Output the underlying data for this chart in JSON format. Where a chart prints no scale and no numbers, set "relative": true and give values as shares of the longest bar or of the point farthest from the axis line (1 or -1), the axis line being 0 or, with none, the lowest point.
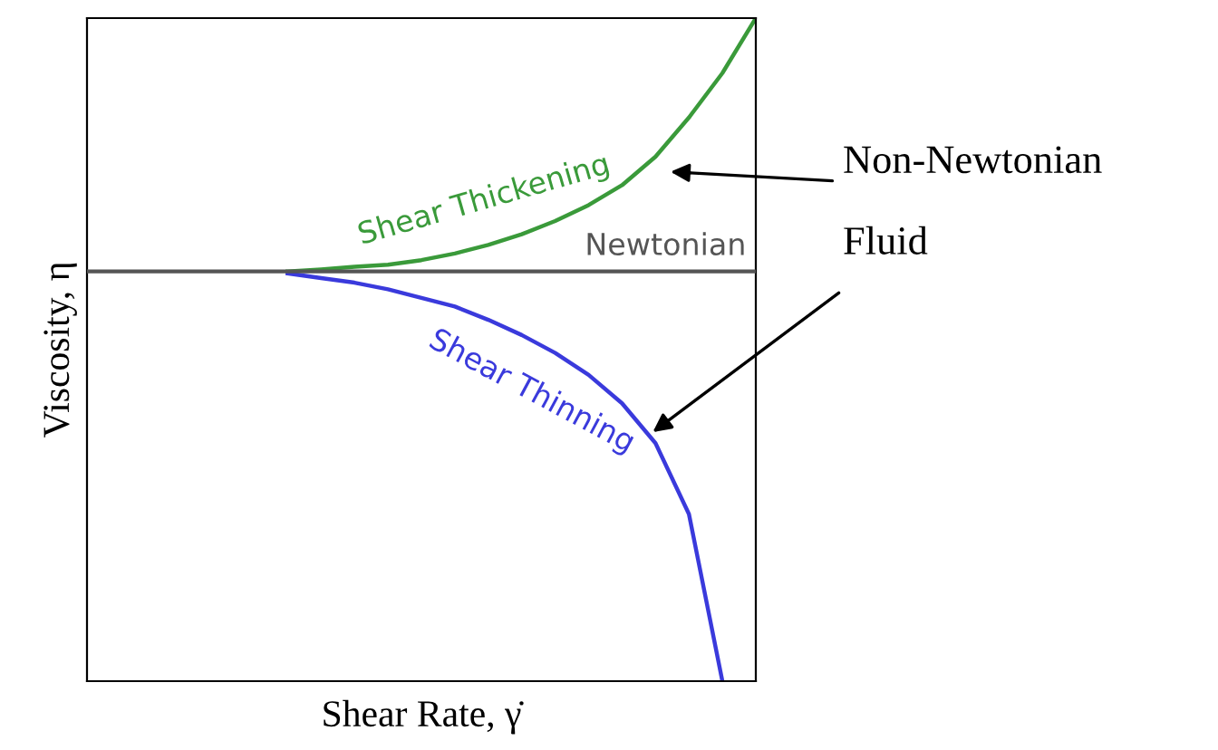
{
  "chart_data": {
    "type": "line",
    "relative": true,
    "xlabel": "Shear Rate, γ̇",
    "ylabel": "Viscosity, η",
    "categories": [
      null,
      null,
      null,
      null,
      null,
      null,
      null,
      null,
      null,
      null,
      null,
      null,
      null,
      null,
      null,
      null,
      null,
      null,
      null,
      null,
      null
    ],
    "series": [
      {
        "name": "Shear Thickening",
        "color": "#3a9a3a",
        "values": [
          null,
          null,
          null,
          null,
          null,
          null,
          0.618,
          0.621,
          0.625,
          0.628,
          0.635,
          0.645,
          0.658,
          0.674,
          0.694,
          0.718,
          0.748,
          0.791,
          0.85,
          0.917,
          1
        ]
      },
      {
        "name": "Newtonian",
        "color": "#555555",
        "values": [
          0.618,
          0.618,
          0.618,
          0.618,
          0.618,
          0.618,
          0.618,
          0.618,
          0.618,
          0.618,
          0.618,
          0.618,
          0.618,
          0.618,
          0.618,
          0.618,
          0.618,
          0.618,
          0.618,
          0.618,
          0.618
        ]
      },
      {
        "name": "Shear Thinning",
        "color": "#3a3adc",
        "values": [
          null,
          null,
          null,
          null,
          null,
          null,
          0.615,
          0.608,
          0.601,
          0.591,
          0.578,
          0.565,
          0.545,
          0.522,
          0.495,
          0.462,
          0.419,
          0.359,
          0.252,
          0,
          null
        ]
      }
    ],
    "annotations": [
      "Non-Newtonian\nFluid"
    ],
    "grid": false
  }
}
